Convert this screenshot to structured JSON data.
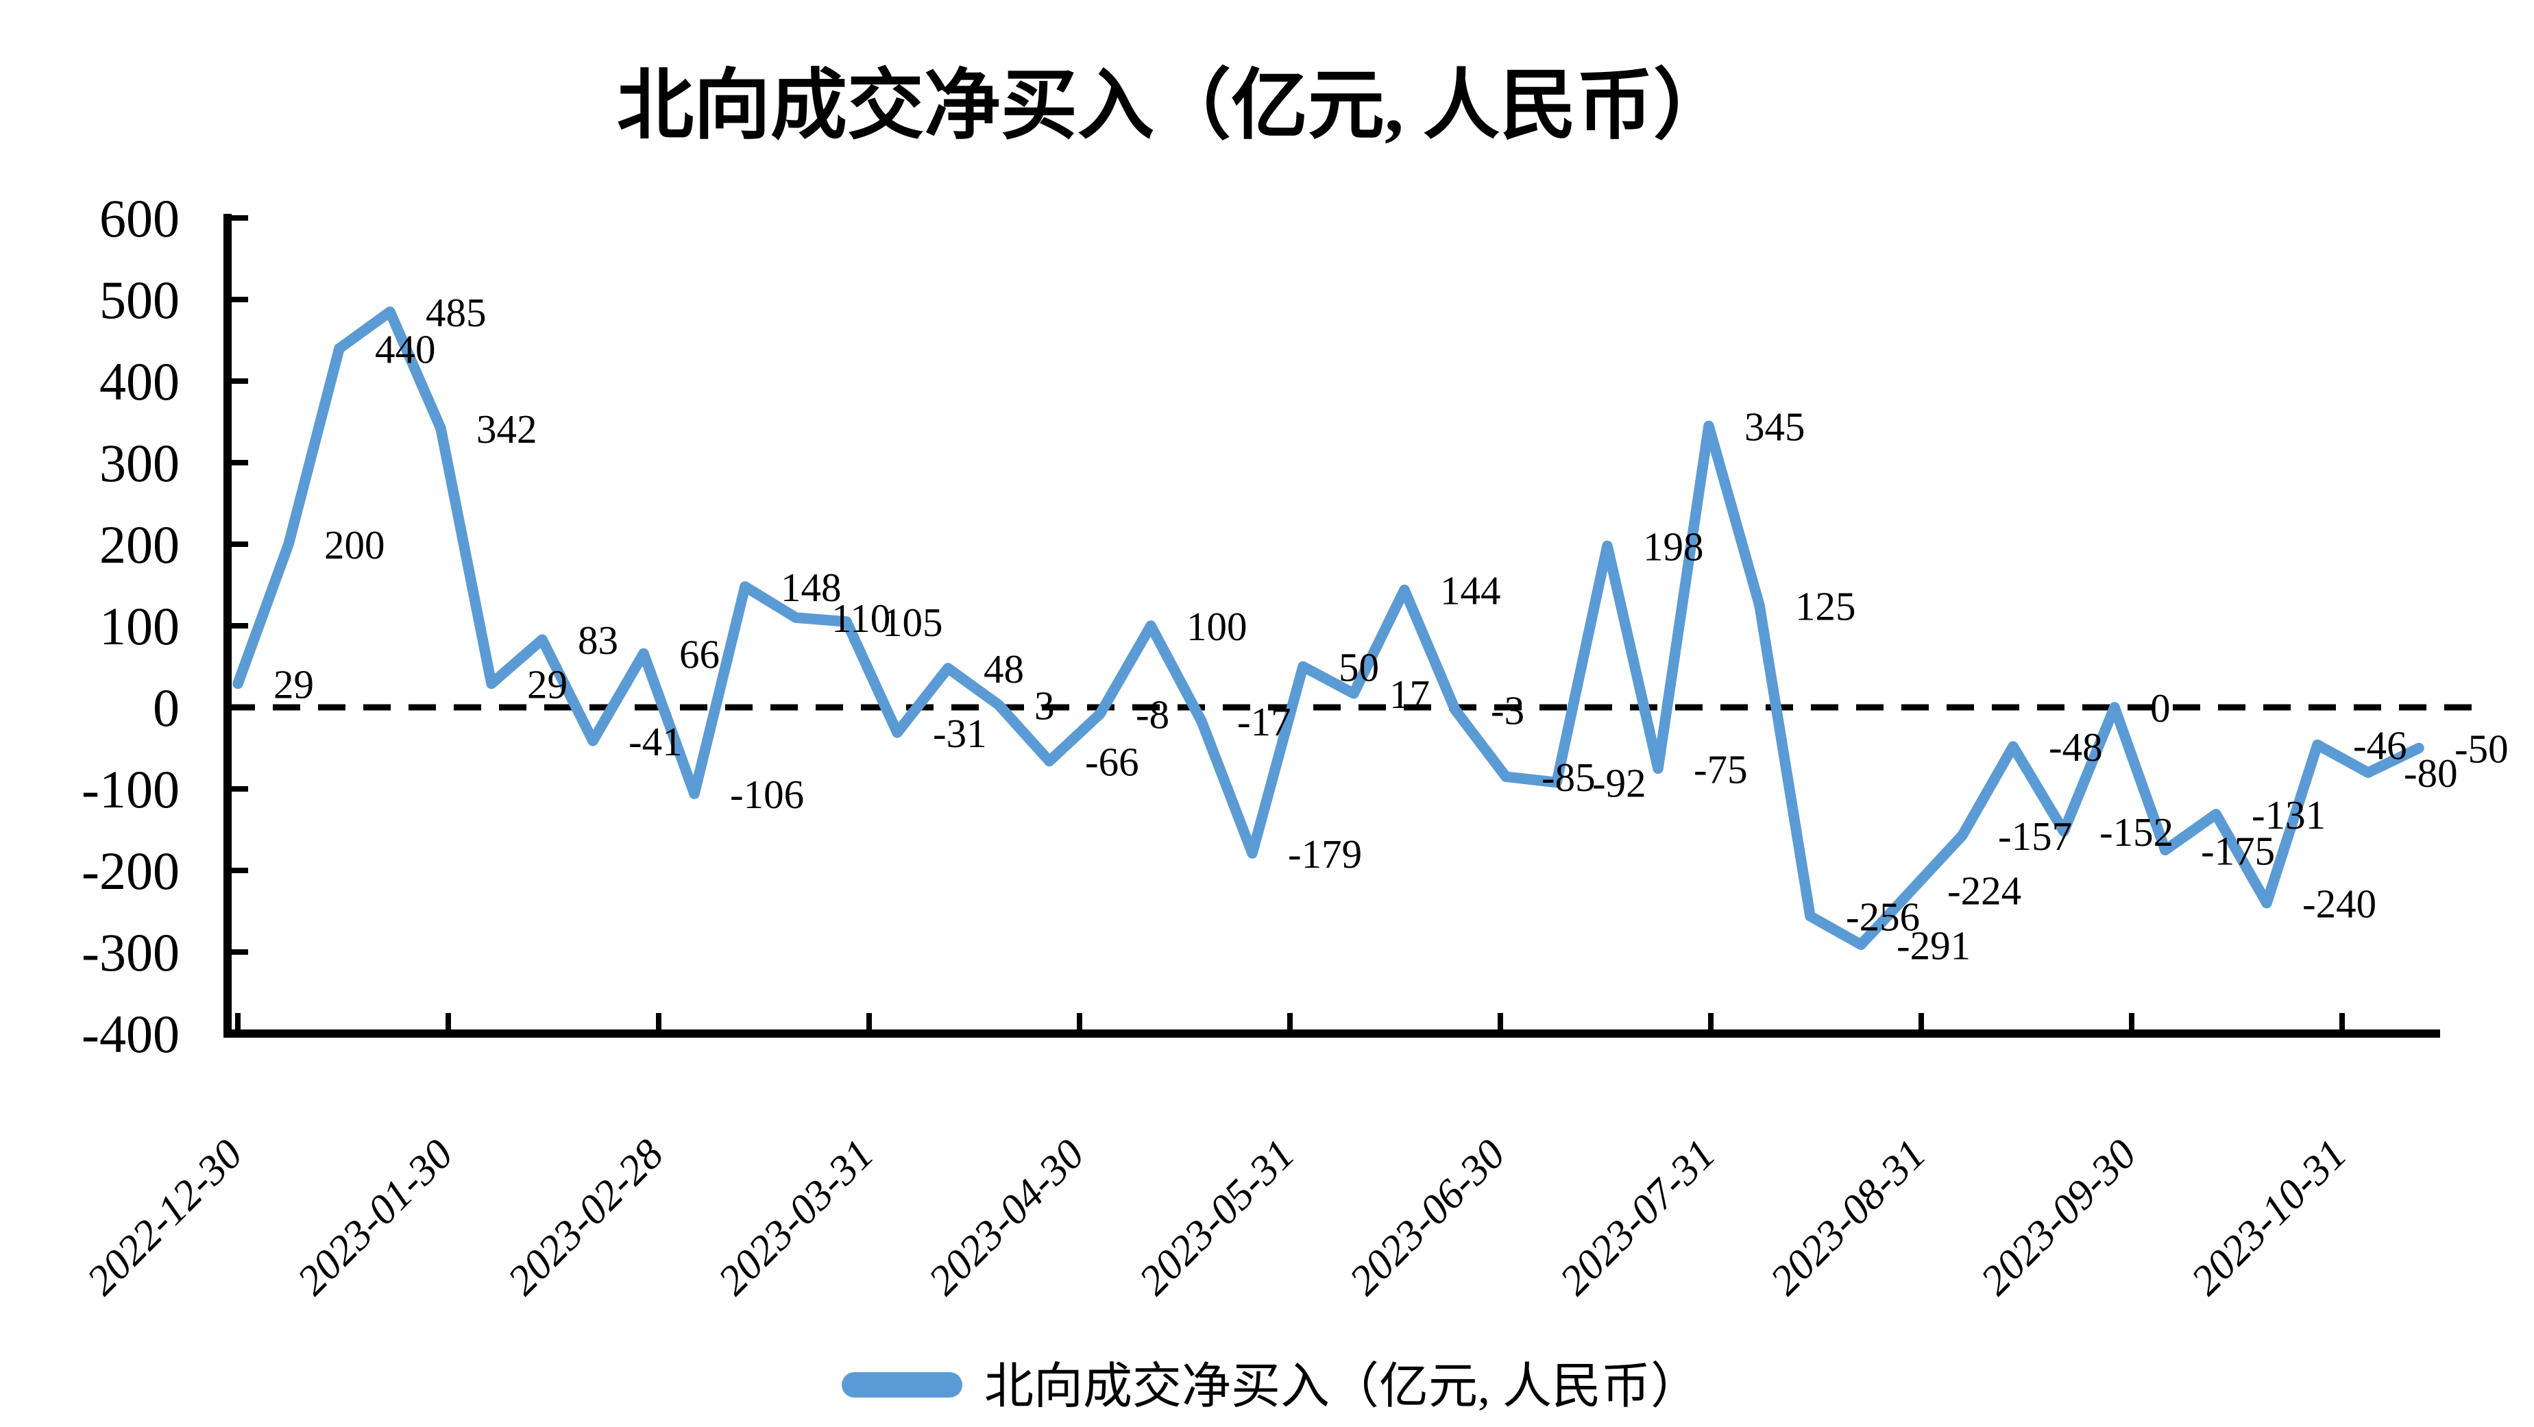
{
  "title": "北向成交净买入（亿元, 人民币）",
  "legend": {
    "label": "北向成交净买入（亿元, 人民币）",
    "swatch": "line-sample"
  },
  "chart_data": {
    "type": "line",
    "title": "北向成交净买入（亿元, 人民币）",
    "series": [
      {
        "name": "北向成交净买入（亿元, 人民币）",
        "values": [
          29,
          200,
          440,
          485,
          342,
          29,
          83,
          -41,
          66,
          -106,
          148,
          110,
          105,
          -31,
          48,
          3,
          -66,
          -8,
          100,
          -17,
          -179,
          50,
          17,
          144,
          -3,
          -85,
          -92,
          198,
          -75,
          345,
          125,
          -256,
          -291,
          -224,
          -157,
          -48,
          -152,
          0,
          -175,
          -131,
          -240,
          -46,
          -80,
          -50
        ]
      }
    ],
    "data_labels_visible": true,
    "x_tick_labels": [
      "2022-12-30",
      "2023-01-30",
      "2023-02-28",
      "2023-03-31",
      "2023-04-30",
      "2023-05-31",
      "2023-06-30",
      "2023-07-31",
      "2023-08-31",
      "2023-09-30",
      "2023-10-31"
    ],
    "y_ticks": [
      600,
      500,
      400,
      300,
      200,
      100,
      0,
      -100,
      -200,
      -300,
      -400
    ],
    "ylim": [
      -400,
      600
    ],
    "grid": "off",
    "zero_line_style": "dashed",
    "line_color": "#5B9BD5",
    "axis_color": "#000000",
    "legend_position": "bottom-center"
  }
}
